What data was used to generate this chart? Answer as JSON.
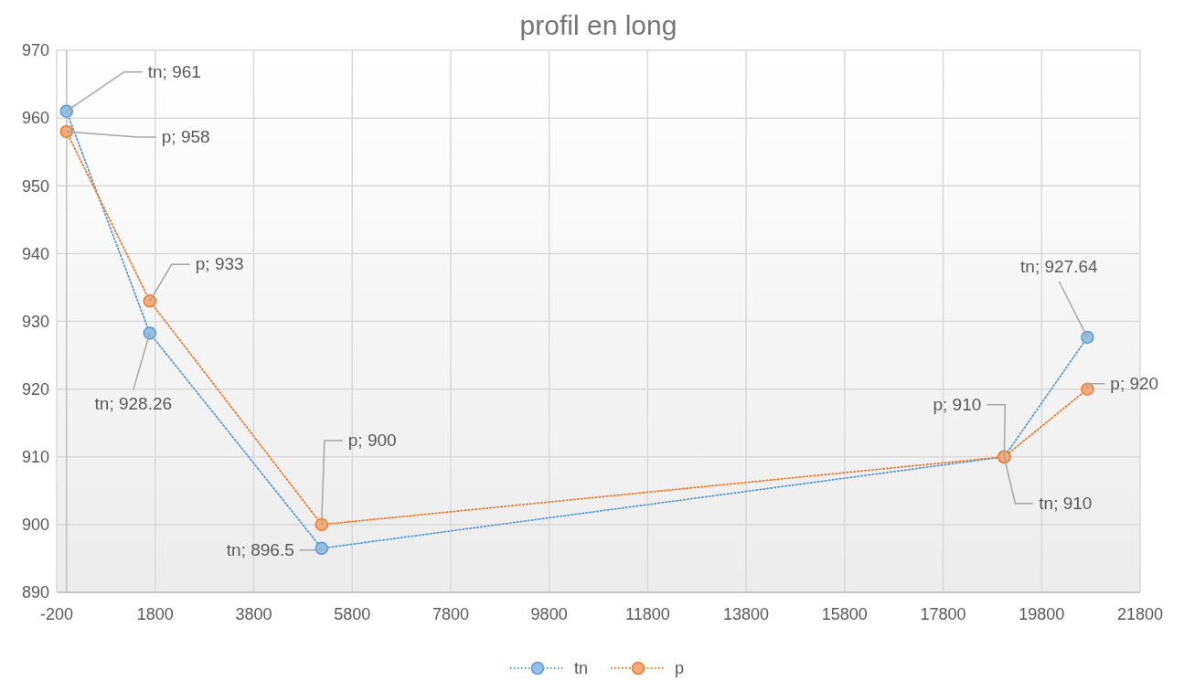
{
  "chart_data": {
    "type": "line",
    "title": "profil en long",
    "series": [
      {
        "name": "tn",
        "color": "#5b9bd5",
        "x": [
          0,
          1690,
          5180,
          19040,
          20730
        ],
        "values": [
          961,
          928.26,
          896.5,
          910,
          927.64
        ],
        "value_labels": [
          "tn; 961",
          "tn; 928.26",
          "tn; 896.5",
          "tn; 910",
          "tn; 927.64"
        ]
      },
      {
        "name": "p",
        "color": "#ed7d31",
        "x": [
          0,
          1690,
          5180,
          19040,
          20730
        ],
        "values": [
          958,
          933,
          900,
          910,
          920
        ],
        "value_labels": [
          "p; 958",
          "p; 933",
          "p; 900",
          "p; 910",
          "p; 920"
        ]
      }
    ],
    "xlim": [
      -200,
      21800
    ],
    "xticks": [
      -200,
      1800,
      3800,
      5800,
      7800,
      9800,
      11800,
      13800,
      15800,
      17800,
      19800,
      21800
    ],
    "ylim": [
      890,
      970
    ],
    "yticks": [
      890,
      900,
      910,
      920,
      930,
      940,
      950,
      960,
      970
    ],
    "grid": true,
    "legend": "bottom",
    "marker": "circle",
    "line_style": "dotted"
  }
}
